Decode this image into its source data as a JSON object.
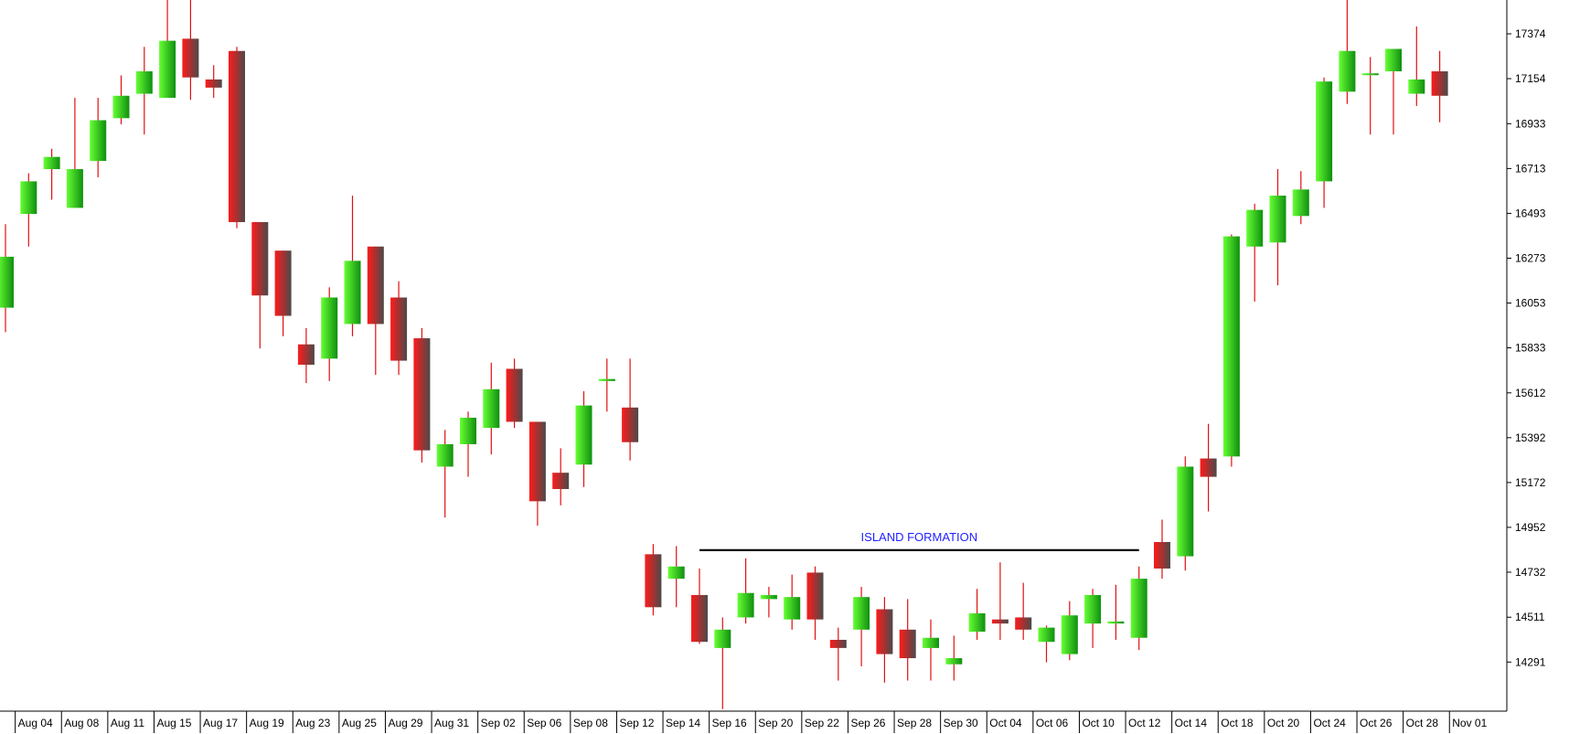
{
  "chart_data": {
    "type": "candlestick",
    "annotation": {
      "text": "ISLAND FORMATION",
      "color": "#1f1fff",
      "level": 14840,
      "from": 30,
      "to": 49
    },
    "y_axis": {
      "ticks": [
        14291,
        14511,
        14732,
        14952,
        15172,
        15392,
        15612,
        15833,
        16053,
        16273,
        16493,
        16713,
        16933,
        17154,
        17374
      ],
      "range": [
        14050,
        17540
      ],
      "position": "right"
    },
    "x_axis": {
      "labels": [
        "Aug 04",
        "Aug 08",
        "Aug 11",
        "Aug 15",
        "Aug 17",
        "Aug 19",
        "Aug 23",
        "Aug 25",
        "Aug 29",
        "Aug 31",
        "Sep 02",
        "Sep 06",
        "Sep 08",
        "Sep 12",
        "Sep 14",
        "Sep 16",
        "Sep 20",
        "Sep 22",
        "Sep 26",
        "Sep 28",
        "Sep 30",
        "Oct 04",
        "Oct 06",
        "Oct 10",
        "Oct 12",
        "Oct 14",
        "Oct 18",
        "Oct 20",
        "Oct 24",
        "Oct 26",
        "Oct 28",
        "Nov 01"
      ],
      "label_every": 2,
      "label_offset": 1
    },
    "colors": {
      "up": "#22c322",
      "down": "#e01010",
      "wick": "#e01010"
    },
    "candles": [
      {
        "o": 16030,
        "h": 16440,
        "l": 15910,
        "c": 16280
      },
      {
        "o": 16490,
        "h": 16690,
        "l": 16330,
        "c": 16650
      },
      {
        "o": 16710,
        "h": 16810,
        "l": 16560,
        "c": 16770
      },
      {
        "o": 16520,
        "h": 17060,
        "l": 16520,
        "c": 16710
      },
      {
        "o": 16750,
        "h": 17060,
        "l": 16670,
        "c": 16950
      },
      {
        "o": 16960,
        "h": 17170,
        "l": 16930,
        "c": 17070
      },
      {
        "o": 17080,
        "h": 17310,
        "l": 16880,
        "c": 17190
      },
      {
        "o": 17060,
        "h": 17570,
        "l": 17060,
        "c": 17340
      },
      {
        "o": 17350,
        "h": 17570,
        "l": 17050,
        "c": 17160
      },
      {
        "o": 17150,
        "h": 17220,
        "l": 17060,
        "c": 17110
      },
      {
        "o": 17290,
        "h": 17310,
        "l": 16420,
        "c": 16450
      },
      {
        "o": 16450,
        "h": 16450,
        "l": 15830,
        "c": 16090
      },
      {
        "o": 16310,
        "h": 16310,
        "l": 15890,
        "c": 15990
      },
      {
        "o": 15850,
        "h": 15930,
        "l": 15660,
        "c": 15750
      },
      {
        "o": 15780,
        "h": 16130,
        "l": 15670,
        "c": 16080
      },
      {
        "o": 15950,
        "h": 16580,
        "l": 15890,
        "c": 16260
      },
      {
        "o": 16330,
        "h": 16330,
        "l": 15700,
        "c": 15950
      },
      {
        "o": 16080,
        "h": 16160,
        "l": 15700,
        "c": 15770
      },
      {
        "o": 15880,
        "h": 15930,
        "l": 15270,
        "c": 15330
      },
      {
        "o": 15250,
        "h": 15430,
        "l": 15000,
        "c": 15360
      },
      {
        "o": 15360,
        "h": 15520,
        "l": 15200,
        "c": 15490
      },
      {
        "o": 15440,
        "h": 15760,
        "l": 15310,
        "c": 15630
      },
      {
        "o": 15730,
        "h": 15780,
        "l": 15440,
        "c": 15470
      },
      {
        "o": 15470,
        "h": 15470,
        "l": 14960,
        "c": 15080
      },
      {
        "o": 15220,
        "h": 15340,
        "l": 15060,
        "c": 15140
      },
      {
        "o": 15260,
        "h": 15620,
        "l": 15150,
        "c": 15550
      },
      {
        "o": 15670,
        "h": 15780,
        "l": 15520,
        "c": 15680
      },
      {
        "o": 15540,
        "h": 15780,
        "l": 15280,
        "c": 15370
      },
      {
        "o": 14820,
        "h": 14870,
        "l": 14520,
        "c": 14560
      },
      {
        "o": 14700,
        "h": 14860,
        "l": 14560,
        "c": 14760
      },
      {
        "o": 14620,
        "h": 14750,
        "l": 14380,
        "c": 14390
      },
      {
        "o": 14360,
        "h": 14510,
        "l": 14060,
        "c": 14450
      },
      {
        "o": 14510,
        "h": 14800,
        "l": 14480,
        "c": 14630
      },
      {
        "o": 14600,
        "h": 14660,
        "l": 14510,
        "c": 14620
      },
      {
        "o": 14500,
        "h": 14720,
        "l": 14450,
        "c": 14610
      },
      {
        "o": 14730,
        "h": 14760,
        "l": 14400,
        "c": 14500
      },
      {
        "o": 14400,
        "h": 14460,
        "l": 14200,
        "c": 14360
      },
      {
        "o": 14450,
        "h": 14660,
        "l": 14270,
        "c": 14610
      },
      {
        "o": 14550,
        "h": 14610,
        "l": 14190,
        "c": 14330
      },
      {
        "o": 14450,
        "h": 14600,
        "l": 14200,
        "c": 14310
      },
      {
        "o": 14360,
        "h": 14500,
        "l": 14200,
        "c": 14410
      },
      {
        "o": 14280,
        "h": 14420,
        "l": 14200,
        "c": 14310
      },
      {
        "o": 14440,
        "h": 14650,
        "l": 14400,
        "c": 14530
      },
      {
        "o": 14500,
        "h": 14780,
        "l": 14400,
        "c": 14480
      },
      {
        "o": 14510,
        "h": 14680,
        "l": 14400,
        "c": 14450
      },
      {
        "o": 14390,
        "h": 14470,
        "l": 14290,
        "c": 14460
      },
      {
        "o": 14330,
        "h": 14590,
        "l": 14300,
        "c": 14520
      },
      {
        "o": 14480,
        "h": 14650,
        "l": 14360,
        "c": 14620
      },
      {
        "o": 14480,
        "h": 14670,
        "l": 14400,
        "c": 14490
      },
      {
        "o": 14410,
        "h": 14760,
        "l": 14350,
        "c": 14700
      },
      {
        "o": 14880,
        "h": 14990,
        "l": 14700,
        "c": 14750
      },
      {
        "o": 14810,
        "h": 15300,
        "l": 14740,
        "c": 15250
      },
      {
        "o": 15290,
        "h": 15460,
        "l": 15030,
        "c": 15200
      },
      {
        "o": 15300,
        "h": 16390,
        "l": 15250,
        "c": 16380
      },
      {
        "o": 16330,
        "h": 16540,
        "l": 16060,
        "c": 16510
      },
      {
        "o": 16350,
        "h": 16710,
        "l": 16140,
        "c": 16580
      },
      {
        "o": 16480,
        "h": 16700,
        "l": 16440,
        "c": 16610
      },
      {
        "o": 16650,
        "h": 17160,
        "l": 16520,
        "c": 17140
      },
      {
        "o": 17090,
        "h": 17540,
        "l": 17030,
        "c": 17290
      },
      {
        "o": 17180,
        "h": 17260,
        "l": 16880,
        "c": 17180
      },
      {
        "o": 17190,
        "h": 17300,
        "l": 16880,
        "c": 17300
      },
      {
        "o": 17080,
        "h": 17410,
        "l": 17020,
        "c": 17150
      },
      {
        "o": 17190,
        "h": 17290,
        "l": 16940,
        "c": 17070
      }
    ]
  }
}
